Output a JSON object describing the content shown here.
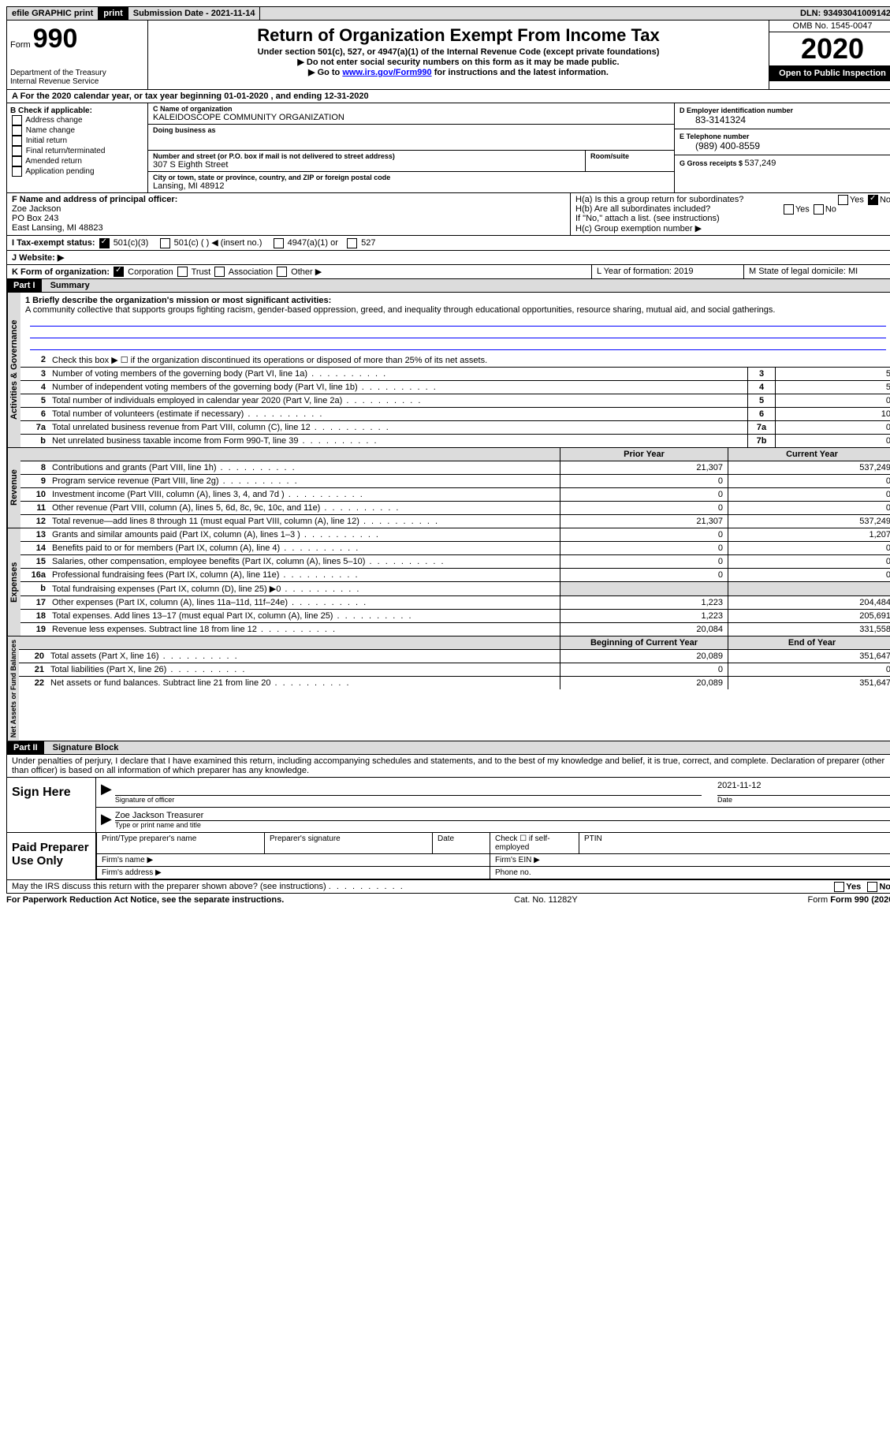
{
  "topbar": {
    "efile": "efile GRAPHIC print",
    "sub_label": "Submission Date - ",
    "sub_date": "2021-11-14",
    "dln_label": "DLN: ",
    "dln": "93493041009142"
  },
  "header": {
    "form_word": "Form",
    "form_no": "990",
    "dept": "Department of the Treasury\nInternal Revenue Service",
    "title": "Return of Organization Exempt From Income Tax",
    "sub1": "Under section 501(c), 527, or 4947(a)(1) of the Internal Revenue Code (except private foundations)",
    "sub2": "▶ Do not enter social security numbers on this form as it may be made public.",
    "sub3_a": "▶ Go to ",
    "sub3_link": "www.irs.gov/Form990",
    "sub3_b": " for instructions and the latest information.",
    "omb": "OMB No. 1545-0047",
    "year": "2020",
    "open": "Open to Public Inspection"
  },
  "lineA": "A For the 2020 calendar year, or tax year beginning 01-01-2020   , and ending 12-31-2020",
  "boxB": {
    "label": "B Check if applicable:",
    "opts": [
      "Address change",
      "Name change",
      "Initial return",
      "Final return/terminated",
      "Amended return",
      "Application pending"
    ]
  },
  "boxC": {
    "name_label": "C Name of organization",
    "name": "KALEIDOSCOPE COMMUNITY ORGANIZATION",
    "dba_label": "Doing business as",
    "street_label": "Number and street (or P.O. box if mail is not delivered to street address)",
    "room_label": "Room/suite",
    "street": "307 S Eighth Street",
    "city_label": "City or town, state or province, country, and ZIP or foreign postal code",
    "city": "Lansing, MI   48912"
  },
  "boxD": {
    "label": "D Employer identification number",
    "val": "83-3141324"
  },
  "boxE": {
    "label": "E Telephone number",
    "val": "(989) 400-8559"
  },
  "boxG": {
    "label": "G Gross receipts $ ",
    "val": "537,249"
  },
  "boxF": {
    "label": "F  Name and address of principal officer:",
    "name": "Zoe Jackson",
    "addr1": "PO Box 243",
    "addr2": "East Lansing, MI   48823"
  },
  "boxH": {
    "a": "H(a)  Is this a group return for subordinates?",
    "b": "H(b)  Are all subordinates included?",
    "b2": "If \"No,\" attach a list. (see instructions)",
    "c": "H(c)  Group exemption number ▶",
    "yes": "Yes",
    "no": "No"
  },
  "boxI": {
    "label": "I   Tax-exempt status:",
    "o1": "501(c)(3)",
    "o2": "501(c) (   ) ◀ (insert no.)",
    "o3": "4947(a)(1) or",
    "o4": "527"
  },
  "boxJ": "J   Website: ▶",
  "boxK": {
    "label": "K Form of organization:",
    "o1": "Corporation",
    "o2": "Trust",
    "o3": "Association",
    "o4": "Other ▶"
  },
  "boxL": "L Year of formation: 2019",
  "boxM": "M State of legal domicile: MI",
  "part1": {
    "header": "Part I",
    "title": "Summary",
    "mission_label": "1  Briefly describe the organization's mission or most significant activities:",
    "mission": "A community collective that supports groups fighting racism, gender-based oppression, greed, and inequality through educational opportunities, resource sharing, mutual aid, and social gatherings.",
    "line2": "Check this box ▶ ☐  if the organization discontinued its operations or disposed of more than 25% of its net assets.",
    "sidebars": {
      "gov": "Activities & Governance",
      "rev": "Revenue",
      "exp": "Expenses",
      "net": "Net Assets or Fund Balances"
    },
    "gov_lines": [
      {
        "n": "3",
        "t": "Number of voting members of the governing body (Part VI, line 1a)",
        "box": "3",
        "v": "5"
      },
      {
        "n": "4",
        "t": "Number of independent voting members of the governing body (Part VI, line 1b)",
        "box": "4",
        "v": "5"
      },
      {
        "n": "5",
        "t": "Total number of individuals employed in calendar year 2020 (Part V, line 2a)",
        "box": "5",
        "v": "0"
      },
      {
        "n": "6",
        "t": "Total number of volunteers (estimate if necessary)",
        "box": "6",
        "v": "10"
      },
      {
        "n": "7a",
        "t": "Total unrelated business revenue from Part VIII, column (C), line 12",
        "box": "7a",
        "v": "0"
      },
      {
        "n": "b",
        "t": "Net unrelated business taxable income from Form 990-T, line 39",
        "box": "7b",
        "v": "0"
      }
    ],
    "col_prior": "Prior Year",
    "col_current": "Current Year",
    "rev_lines": [
      {
        "n": "8",
        "t": "Contributions and grants (Part VIII, line 1h)",
        "p": "21,307",
        "c": "537,249"
      },
      {
        "n": "9",
        "t": "Program service revenue (Part VIII, line 2g)",
        "p": "0",
        "c": "0"
      },
      {
        "n": "10",
        "t": "Investment income (Part VIII, column (A), lines 3, 4, and 7d )",
        "p": "0",
        "c": "0"
      },
      {
        "n": "11",
        "t": "Other revenue (Part VIII, column (A), lines 5, 6d, 8c, 9c, 10c, and 11e)",
        "p": "0",
        "c": "0"
      },
      {
        "n": "12",
        "t": "Total revenue—add lines 8 through 11 (must equal Part VIII, column (A), line 12)",
        "p": "21,307",
        "c": "537,249"
      }
    ],
    "exp_lines": [
      {
        "n": "13",
        "t": "Grants and similar amounts paid (Part IX, column (A), lines 1–3 )",
        "p": "0",
        "c": "1,207"
      },
      {
        "n": "14",
        "t": "Benefits paid to or for members (Part IX, column (A), line 4)",
        "p": "0",
        "c": "0"
      },
      {
        "n": "15",
        "t": "Salaries, other compensation, employee benefits (Part IX, column (A), lines 5–10)",
        "p": "0",
        "c": "0"
      },
      {
        "n": "16a",
        "t": "Professional fundraising fees (Part IX, column (A), line 11e)",
        "p": "0",
        "c": "0"
      },
      {
        "n": "b",
        "t": "Total fundraising expenses (Part IX, column (D), line 25) ▶0",
        "p": "",
        "c": "",
        "grey": true
      },
      {
        "n": "17",
        "t": "Other expenses (Part IX, column (A), lines 11a–11d, 11f–24e)",
        "p": "1,223",
        "c": "204,484"
      },
      {
        "n": "18",
        "t": "Total expenses. Add lines 13–17 (must equal Part IX, column (A), line 25)",
        "p": "1,223",
        "c": "205,691"
      },
      {
        "n": "19",
        "t": "Revenue less expenses. Subtract line 18 from line 12",
        "p": "20,084",
        "c": "331,558"
      }
    ],
    "col_begin": "Beginning of Current Year",
    "col_end": "End of Year",
    "net_lines": [
      {
        "n": "20",
        "t": "Total assets (Part X, line 16)",
        "p": "20,089",
        "c": "351,647"
      },
      {
        "n": "21",
        "t": "Total liabilities (Part X, line 26)",
        "p": "0",
        "c": "0"
      },
      {
        "n": "22",
        "t": "Net assets or fund balances. Subtract line 21 from line 20",
        "p": "20,089",
        "c": "351,647"
      }
    ]
  },
  "part2": {
    "header": "Part II",
    "title": "Signature Block",
    "decl": "Under penalties of perjury, I declare that I have examined this return, including accompanying schedules and statements, and to the best of my knowledge and belief, it is true, correct, and complete. Declaration of preparer (other than officer) is based on all information of which preparer has any knowledge.",
    "sign_here": "Sign Here",
    "sig_officer": "Signature of officer",
    "sig_date": "2021-11-12",
    "date_label": "Date",
    "sig_name": "Zoe Jackson  Treasurer",
    "sig_name_label": "Type or print name and title",
    "paid": "Paid Preparer Use Only",
    "p_name": "Print/Type preparer's name",
    "p_sig": "Preparer's signature",
    "p_date": "Date",
    "p_check": "Check ☐ if self-employed",
    "p_ptin": "PTIN",
    "p_firm": "Firm's name   ▶",
    "p_ein": "Firm's EIN ▶",
    "p_addr": "Firm's address ▶",
    "p_phone": "Phone no."
  },
  "footer": {
    "q": "May the IRS discuss this return with the preparer shown above? (see instructions)",
    "yes": "Yes",
    "no": "No",
    "pra": "For Paperwork Reduction Act Notice, see the separate instructions.",
    "cat": "Cat. No. 11282Y",
    "form": "Form 990 (2020)"
  }
}
